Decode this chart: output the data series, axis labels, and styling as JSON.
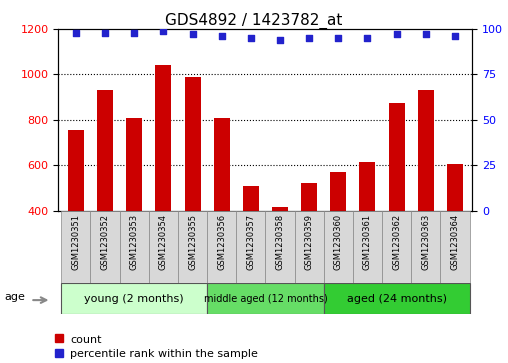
{
  "title": "GDS4892 / 1423782_at",
  "samples": [
    "GSM1230351",
    "GSM1230352",
    "GSM1230353",
    "GSM1230354",
    "GSM1230355",
    "GSM1230356",
    "GSM1230357",
    "GSM1230358",
    "GSM1230359",
    "GSM1230360",
    "GSM1230361",
    "GSM1230362",
    "GSM1230363",
    "GSM1230364"
  ],
  "counts": [
    755,
    930,
    810,
    1040,
    990,
    810,
    510,
    415,
    520,
    570,
    615,
    875,
    930,
    605
  ],
  "percentile_ranks": [
    98,
    98,
    98,
    99,
    97,
    96,
    95,
    94,
    95,
    95,
    95,
    97,
    97,
    96
  ],
  "bar_color": "#cc0000",
  "dot_color": "#2222cc",
  "ylim_left": [
    400,
    1200
  ],
  "ylim_right": [
    0,
    100
  ],
  "yticks_left": [
    400,
    600,
    800,
    1000,
    1200
  ],
  "yticks_right": [
    0,
    25,
    50,
    75,
    100
  ],
  "groups": [
    {
      "label": "young (2 months)",
      "start": 0,
      "end": 5,
      "color": "#ccffcc"
    },
    {
      "label": "middle aged (12 months)",
      "start": 5,
      "end": 9,
      "color": "#66dd66"
    },
    {
      "label": "aged (24 months)",
      "start": 9,
      "end": 14,
      "color": "#33cc33"
    }
  ],
  "legend_count_label": "count",
  "legend_percentile_label": "percentile rank within the sample",
  "age_label": "age",
  "title_fontsize": 11,
  "tick_fontsize": 8,
  "sample_fontsize": 6,
  "group_fontsize": 8
}
